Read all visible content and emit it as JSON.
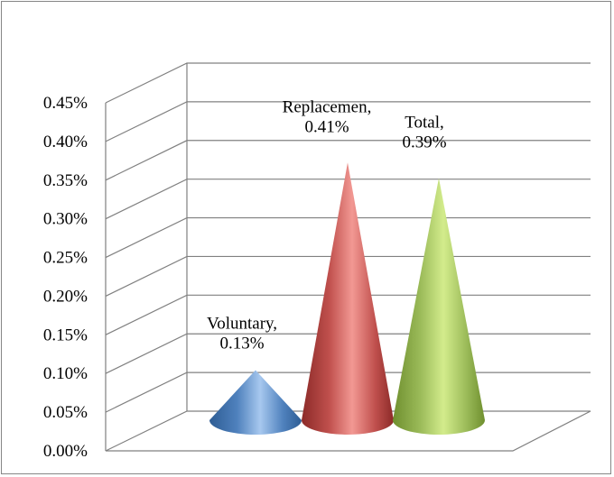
{
  "chart_data": {
    "type": "bar",
    "style": "3d-cone",
    "title": "",
    "xlabel": "",
    "ylabel": "",
    "ylim": [
      0,
      0.45
    ],
    "ytick_step": 0.05,
    "grid": true,
    "legend": "none",
    "yticks": [
      "0.00%",
      "0.05%",
      "0.10%",
      "0.15%",
      "0.20%",
      "0.25%",
      "0.30%",
      "0.35%",
      "0.40%",
      "0.45%"
    ],
    "categories": [
      "Voluntary",
      "Replacemen",
      "Total"
    ],
    "values": [
      0.13,
      0.41,
      0.39
    ],
    "data_labels": [
      {
        "line1": "Voluntary,",
        "line2": "0.13%"
      },
      {
        "line1": "Replacemen,",
        "line2": "0.41%"
      },
      {
        "line1": "Total,",
        "line2": "0.39%"
      }
    ],
    "colors": [
      "#4f81bd",
      "#c0504d",
      "#9bbb59"
    ],
    "color_highlights": [
      "#a7c8ef",
      "#f29893",
      "#d3ec8c"
    ],
    "color_shadows": [
      "#2e5d94",
      "#8c2a28",
      "#6f8f2f"
    ]
  }
}
